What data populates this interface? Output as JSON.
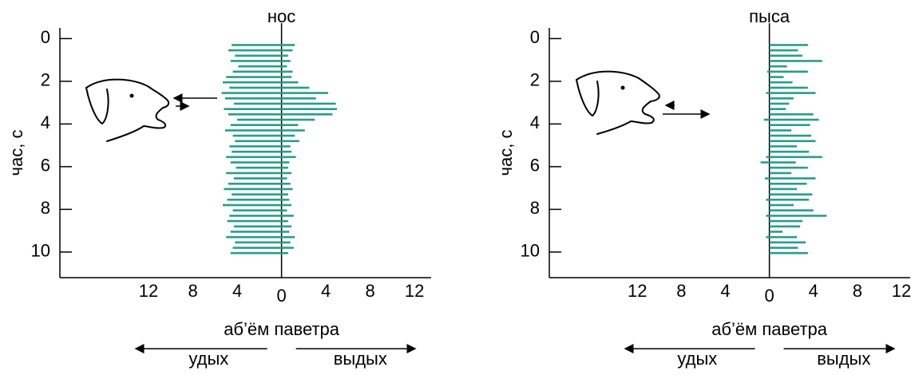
{
  "chart_data": [
    {
      "type": "hbar",
      "title": "нос",
      "ylabel": "час, с",
      "xlabel": "аб’ём паветра",
      "y_inverted": true,
      "x": [
        0.3,
        0.55,
        0.8,
        1.05,
        1.3,
        1.55,
        1.8,
        2.05,
        2.3,
        2.55,
        2.8,
        3.05,
        3.3,
        3.55,
        3.8,
        4.05,
        4.3,
        4.55,
        4.8,
        5.05,
        5.3,
        5.55,
        5.8,
        6.05,
        6.3,
        6.55,
        6.8,
        7.05,
        7.3,
        7.55,
        7.8,
        8.05,
        8.3,
        8.55,
        8.8,
        9.05,
        9.3,
        9.55,
        9.8,
        10.05
      ],
      "series": [
        {
          "name": "удых",
          "color": "#2a9d88",
          "values": [
            -4.5,
            -4.8,
            -4.2,
            -4.6,
            -3.9,
            -4.4,
            -5.0,
            -5.3,
            -4.7,
            -5.4,
            -5.1,
            -4.3,
            -5.2,
            -4.8,
            -4.0,
            -4.6,
            -5.1,
            -4.4,
            -4.2,
            -4.7,
            -4.5,
            -5.0,
            -4.6,
            -4.1,
            -5.0,
            -4.3,
            -4.8,
            -5.2,
            -4.5,
            -4.9,
            -5.3,
            -4.4,
            -4.7,
            -4.9,
            -4.3,
            -4.6,
            -5.0,
            -4.2,
            -4.4,
            -4.6
          ]
        },
        {
          "name": "выдых",
          "color": "#2a9d88",
          "values": [
            1.2,
            1.0,
            0.6,
            0.8,
            0.5,
            1.0,
            0.9,
            1.5,
            2.5,
            4.2,
            3.1,
            4.9,
            5.0,
            4.6,
            3.0,
            1.5,
            2.1,
            1.2,
            1.6,
            0.8,
            0.9,
            1.3,
            0.7,
            0.6,
            0.9,
            0.5,
            0.8,
            1.0,
            0.6,
            0.7,
            0.9,
            0.5,
            1.1,
            0.6,
            0.9,
            0.7,
            1.2,
            0.8,
            1.1,
            0.6
          ]
        }
      ],
      "xlim": [
        -20,
        13.5
      ],
      "xticks": [
        {
          "value": -12,
          "label": "12"
        },
        {
          "value": -8,
          "label": "8"
        },
        {
          "value": -4,
          "label": "4"
        },
        0,
        4,
        8,
        12
      ],
      "ylim": [
        -0.5,
        11.2
      ],
      "yticks": [
        0,
        2,
        4,
        6,
        8,
        10
      ],
      "grid": false
    },
    {
      "type": "hbar",
      "title": "пыса",
      "ylabel": "час, с",
      "xlabel": "аб’ём паветра",
      "y_inverted": true,
      "x": [
        0.3,
        0.55,
        0.8,
        1.05,
        1.3,
        1.55,
        1.8,
        2.05,
        2.3,
        2.55,
        2.8,
        3.05,
        3.3,
        3.55,
        3.8,
        4.05,
        4.3,
        4.55,
        4.8,
        5.05,
        5.3,
        5.55,
        5.8,
        6.05,
        6.3,
        6.55,
        6.8,
        7.05,
        7.3,
        7.55,
        7.8,
        8.05,
        8.3,
        8.55,
        8.8,
        9.05,
        9.3,
        9.55,
        9.8,
        10.05
      ],
      "series": [
        {
          "name": "удых",
          "color": "#2a9d88",
          "values": [
            0,
            0,
            0,
            0,
            0,
            -0.2,
            0,
            0,
            0,
            -0.3,
            0,
            0,
            0,
            0,
            -0.5,
            0,
            0,
            0,
            0,
            0,
            0,
            -0.3,
            -0.8,
            0,
            0,
            -0.4,
            0,
            0,
            0,
            -0.3,
            0,
            0,
            -0.3,
            0,
            0,
            0,
            -0.3,
            0,
            0,
            0
          ]
        },
        {
          "name": "выдых",
          "color": "#2a9d88",
          "values": [
            3.5,
            2.6,
            3.0,
            4.8,
            1.6,
            3.5,
            1.3,
            2.1,
            3.5,
            4.2,
            2.2,
            1.8,
            1.5,
            4.0,
            4.5,
            3.7,
            2.0,
            3.8,
            4.2,
            2.5,
            3.6,
            4.8,
            2.4,
            3.5,
            2.0,
            4.2,
            3.4,
            2.5,
            3.9,
            3.6,
            2.2,
            4.0,
            5.2,
            3.0,
            2.8,
            1.2,
            2.5,
            3.3,
            2.6,
            3.5
          ]
        }
      ],
      "xlim": [
        -20,
        12.8
      ],
      "xticks": [
        {
          "value": -12,
          "label": "12"
        },
        {
          "value": -8,
          "label": "8"
        },
        {
          "value": -4,
          "label": "4"
        },
        0,
        4,
        8,
        12
      ],
      "ylim": [
        -0.5,
        11.2
      ],
      "yticks": [
        0,
        2,
        4,
        6,
        8,
        10
      ],
      "grid": false
    }
  ]
}
